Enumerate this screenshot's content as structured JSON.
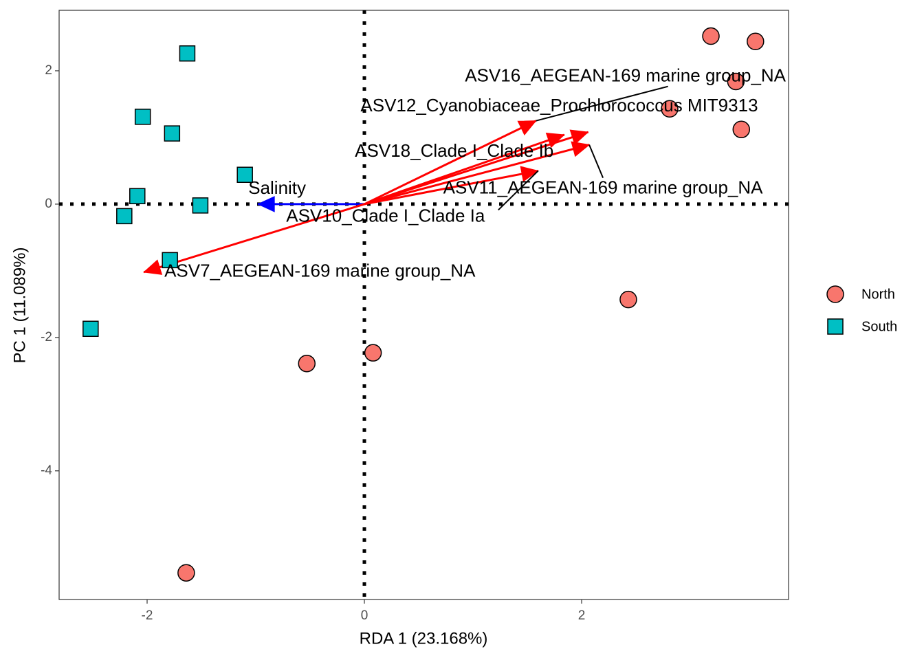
{
  "chart_data": {
    "type": "scatter",
    "x_label": "RDA 1 (23.168%)",
    "y_label": "PC 1 (11.089%)",
    "xlim": [
      -2.81,
      3.905
    ],
    "ylim": [
      -5.93,
      2.907
    ],
    "xticks": [
      -2,
      0,
      2
    ],
    "yticks": [
      -4,
      -2,
      0,
      2
    ],
    "series": [
      {
        "name": "North",
        "color": "#f8766d",
        "marker": "circle",
        "x": [
          3.19,
          3.6,
          3.42,
          2.81,
          3.47,
          2.43,
          0.08,
          -0.53,
          -1.64
        ],
        "values": [
          2.52,
          2.44,
          1.84,
          1.43,
          1.12,
          -1.43,
          -2.23,
          -2.39,
          -5.53
        ]
      },
      {
        "name": "South",
        "color": "#00bfc4",
        "marker": "square",
        "x": [
          -1.63,
          -2.04,
          -1.77,
          -1.1,
          -2.09,
          -1.51,
          -2.21,
          -1.79,
          -2.52
        ],
        "values": [
          2.26,
          1.31,
          1.06,
          0.44,
          0.12,
          -0.02,
          -0.18,
          -0.84,
          -1.87
        ]
      }
    ],
    "arrows": [
      {
        "name": "Salinity",
        "color": "#0000ff",
        "x": -0.98,
        "y": 0
      },
      {
        "name": "ASV16_AEGEAN-169 marine group_NA",
        "color": "#ff0000",
        "x": 1.58,
        "y": 1.25
      },
      {
        "name": "ASV12_Cyanobiaceae_Prochlorococcus MIT9313",
        "color": "#ff0000",
        "x": 2.06,
        "y": 1.08
      },
      {
        "name": "ASV18_Clade I_Clade Ib",
        "color": "#ff0000",
        "x": 1.84,
        "y": 1.04
      },
      {
        "name": "ASV11_AEGEAN-169 marine group_NA",
        "color": "#ff0000",
        "x": 2.07,
        "y": 0.89
      },
      {
        "name": "ASV10_Clade I_Clade Ia",
        "color": "#ff0000",
        "x": 1.6,
        "y": 0.5
      },
      {
        "name": "ASV7_AEGEAN-169 marine group_NA",
        "color": "#ff0000",
        "x": -2.03,
        "y": -1.02
      }
    ]
  }
}
